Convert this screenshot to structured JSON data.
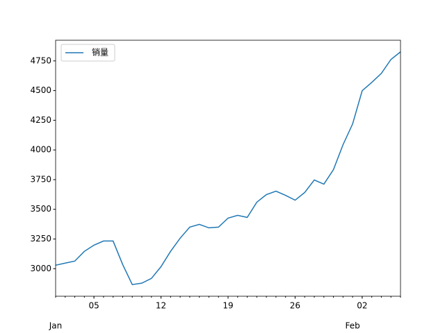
{
  "chart_data": {
    "type": "line",
    "x": [
      "01-01",
      "01-02",
      "01-03",
      "01-04",
      "01-05",
      "01-06",
      "01-07",
      "01-08",
      "01-09",
      "01-10",
      "01-11",
      "01-12",
      "01-13",
      "01-14",
      "01-15",
      "01-16",
      "01-17",
      "01-18",
      "01-19",
      "01-20",
      "01-21",
      "01-22",
      "01-23",
      "01-24",
      "01-25",
      "01-26",
      "01-27",
      "01-28",
      "01-29",
      "01-30",
      "01-31",
      "02-01",
      "02-02",
      "02-03",
      "02-04",
      "02-05",
      "02-06"
    ],
    "series": [
      {
        "name": "销量",
        "color": "#1f77b4",
        "values": [
          3029,
          3047,
          3064,
          3146,
          3198,
          3233,
          3233,
          3035,
          2866,
          2878,
          2918,
          3017,
          3146,
          3257,
          3350,
          3373,
          3344,
          3350,
          3426,
          3449,
          3432,
          3560,
          3624,
          3653,
          3618,
          3577,
          3642,
          3747,
          3712,
          3834,
          4044,
          4219,
          4499,
          4569,
          4645,
          4762,
          4826
        ]
      }
    ],
    "xlim": [
      "01-01",
      "02-06"
    ],
    "xticks": [
      {
        "value": "01-05",
        "label": "05"
      },
      {
        "value": "01-12",
        "label": "12"
      },
      {
        "value": "01-19",
        "label": "19"
      },
      {
        "value": "01-26",
        "label": "26"
      },
      {
        "value": "02-02",
        "label": "02"
      }
    ],
    "month_ticks": [
      {
        "value": "01-01",
        "label": "Jan"
      },
      {
        "value": "02-01",
        "label": "Feb"
      }
    ],
    "ylim": [
      2768,
      4924
    ],
    "yticks": [
      3000,
      3250,
      3500,
      3750,
      4000,
      4250,
      4500,
      4750
    ],
    "legend": "upper left"
  }
}
